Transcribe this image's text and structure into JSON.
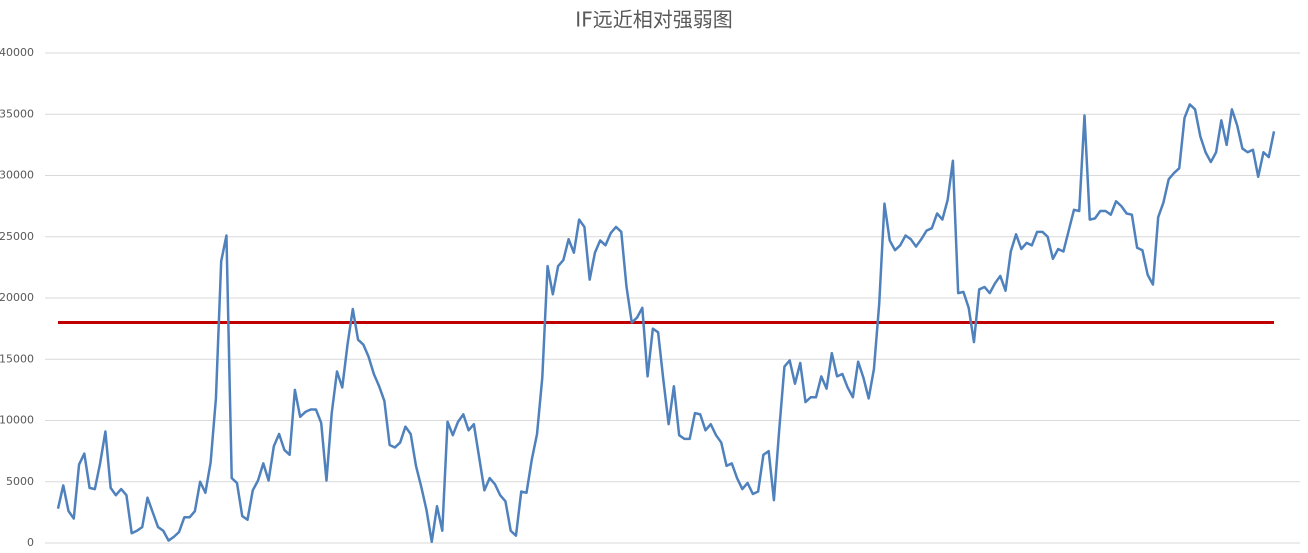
{
  "chart_data": {
    "type": "line",
    "title": "IF远近相对强弱图",
    "series": [
      {
        "color": "#4f81bd",
        "values": [
          2800,
          4700,
          2600,
          2000,
          6400,
          7300,
          4500,
          4400,
          6500,
          9100,
          4500,
          3900,
          4400,
          3900,
          800,
          1000,
          1300,
          3700,
          2500,
          1300,
          1000,
          200,
          500,
          900,
          2100,
          2100,
          2600,
          5000,
          4100,
          6600,
          11800,
          23000,
          25100,
          5300,
          4900,
          2200,
          1900,
          4300,
          5100,
          6500,
          5100,
          7900,
          8900,
          7600,
          7200,
          12500,
          10300,
          10700,
          10900,
          10900,
          9800,
          5100,
          10600,
          14000,
          12700,
          16200,
          19100,
          16600,
          16200,
          15200,
          13800,
          12800,
          11600,
          8000,
          7800,
          8200,
          9500,
          8900,
          6300,
          4600,
          2700,
          100,
          3000,
          1000,
          9900,
          8800,
          9900,
          10500,
          9200,
          9700,
          7000,
          4300,
          5300,
          4800,
          3900,
          3400,
          1000,
          600,
          4200,
          4100,
          6800,
          8900,
          13500,
          22600,
          20300,
          22600,
          23100,
          24800,
          23700,
          26400,
          25800,
          21500,
          23700,
          24700,
          24300,
          25300,
          25800,
          25400,
          20900,
          18000,
          18400,
          19200,
          13600,
          17500,
          17200,
          13300,
          9700,
          12800,
          8800,
          8500,
          8500,
          10600,
          10500,
          9200,
          9700,
          8800,
          8200,
          6300,
          6500,
          5300,
          4400,
          4900,
          4000,
          4200,
          7200,
          7500,
          3500,
          9200,
          14400,
          14900,
          13000,
          14700,
          11500,
          11900,
          11900,
          13600,
          12600,
          15500,
          13600,
          13800,
          12700,
          11900,
          14800,
          13500,
          11800,
          14200,
          19500,
          27700,
          24700,
          23900,
          24300,
          25100,
          24800,
          24200,
          24800,
          25500,
          25700,
          26900,
          26400,
          28000,
          31200,
          20400,
          20500,
          19200,
          16400,
          20700,
          20900,
          20400,
          21200,
          21800,
          20600,
          23800,
          25200,
          24000,
          24500,
          24300,
          25400,
          25400,
          25000,
          23200,
          24000,
          23800,
          25500,
          27200,
          27100,
          34900,
          26400,
          26500,
          27100,
          27100,
          26800,
          27900,
          27500,
          26900,
          26800,
          24100,
          23900,
          21900,
          21100,
          26600,
          27800,
          29700,
          30200,
          30600,
          34700,
          35800,
          35400,
          33200,
          31900,
          31100,
          31900,
          34500,
          32500,
          35400,
          34100,
          32200,
          31900,
          32100,
          29900,
          31900,
          31500,
          33600
        ]
      }
    ],
    "reference_line": {
      "value": 18000,
      "color": "#c00000"
    },
    "ylim": [
      0,
      40000
    ],
    "yticks": [
      0,
      5000,
      10000,
      15000,
      20000,
      25000,
      30000,
      35000,
      40000
    ],
    "grid": true
  }
}
